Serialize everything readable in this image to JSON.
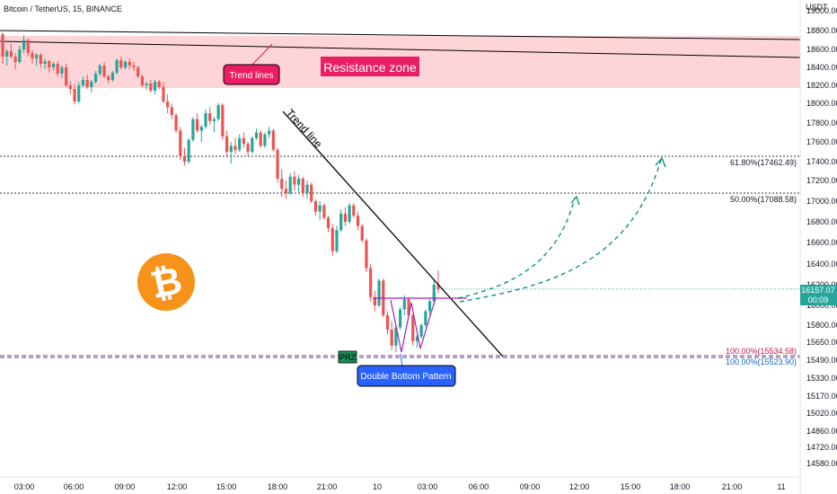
{
  "header": {
    "symbol_line": "Bitcoin / TetherUS, 15, BINANCE",
    "currency": "USDT"
  },
  "chart_data": {
    "type": "candlestick",
    "title": "Bitcoin / TetherUS, 15, BINANCE",
    "y_unit": "USDT",
    "ylim": [
      14480,
      19100
    ],
    "y_ticks": [
      14580,
      14720,
      14860,
      15020,
      15170,
      15330,
      15490,
      15650,
      15800,
      16000,
      16200,
      16400,
      16600,
      16800,
      17000,
      17200,
      17400,
      17600,
      17800,
      18000,
      18200,
      18400,
      18600,
      18800,
      19000
    ],
    "x_ticks": [
      "03:00",
      "06:00",
      "09:00",
      "12:00",
      "15:00",
      "18:00",
      "21:00",
      "10",
      "03:00",
      "06:00",
      "09:00",
      "12:00",
      "15:00",
      "18:00",
      "21:00",
      "11"
    ],
    "grid": false,
    "candles": [
      [
        18760,
        18780,
        18440,
        18520
      ],
      [
        18520,
        18600,
        18420,
        18580
      ],
      [
        18580,
        18660,
        18500,
        18520
      ],
      [
        18520,
        18560,
        18380,
        18460
      ],
      [
        18460,
        18640,
        18440,
        18600
      ],
      [
        18600,
        18750,
        18560,
        18700
      ],
      [
        18700,
        18720,
        18520,
        18560
      ],
      [
        18560,
        18600,
        18440,
        18500
      ],
      [
        18500,
        18560,
        18420,
        18540
      ],
      [
        18540,
        18560,
        18400,
        18440
      ],
      [
        18440,
        18500,
        18380,
        18470
      ],
      [
        18470,
        18480,
        18340,
        18400
      ],
      [
        18400,
        18460,
        18360,
        18440
      ],
      [
        18440,
        18470,
        18300,
        18330
      ],
      [
        18330,
        18420,
        18280,
        18400
      ],
      [
        18400,
        18440,
        18180,
        18200
      ],
      [
        18200,
        18250,
        18100,
        18160
      ],
      [
        18160,
        18220,
        17990,
        18020
      ],
      [
        18020,
        18240,
        18000,
        18200
      ],
      [
        18200,
        18300,
        18180,
        18260
      ],
      [
        18260,
        18320,
        18160,
        18180
      ],
      [
        18180,
        18260,
        18120,
        18240
      ],
      [
        18240,
        18360,
        18220,
        18330
      ],
      [
        18330,
        18440,
        18300,
        18420
      ],
      [
        18420,
        18460,
        18280,
        18300
      ],
      [
        18300,
        18320,
        18220,
        18260
      ],
      [
        18260,
        18360,
        18240,
        18340
      ],
      [
        18340,
        18500,
        18320,
        18480
      ],
      [
        18480,
        18520,
        18380,
        18400
      ],
      [
        18400,
        18480,
        18380,
        18460
      ],
      [
        18460,
        18500,
        18380,
        18420
      ],
      [
        18420,
        18460,
        18360,
        18400
      ],
      [
        18400,
        18420,
        18280,
        18300
      ],
      [
        18300,
        18320,
        18180,
        18200
      ],
      [
        18200,
        18240,
        18150,
        18220
      ],
      [
        18220,
        18260,
        18120,
        18140
      ],
      [
        18140,
        18260,
        18100,
        18240
      ],
      [
        18240,
        18260,
        18160,
        18180
      ],
      [
        18180,
        18240,
        18000,
        18020
      ],
      [
        18020,
        18100,
        17900,
        17960
      ],
      [
        17960,
        18000,
        17840,
        17880
      ],
      [
        17880,
        17900,
        17700,
        17720
      ],
      [
        17720,
        17760,
        17420,
        17460
      ],
      [
        17460,
        17540,
        17360,
        17400
      ],
      [
        17400,
        17640,
        17380,
        17620
      ],
      [
        17620,
        17860,
        17600,
        17840
      ],
      [
        17840,
        17900,
        17700,
        17720
      ],
      [
        17720,
        17780,
        17600,
        17760
      ],
      [
        17760,
        17940,
        17740,
        17900
      ],
      [
        17900,
        17960,
        17780,
        17820
      ],
      [
        17820,
        17860,
        17700,
        17840
      ],
      [
        17840,
        18000,
        17820,
        17980
      ],
      [
        17980,
        18000,
        17620,
        17660
      ],
      [
        17660,
        17720,
        17460,
        17500
      ],
      [
        17500,
        17600,
        17380,
        17560
      ],
      [
        17560,
        17640,
        17480,
        17520
      ],
      [
        17520,
        17680,
        17500,
        17640
      ],
      [
        17640,
        17700,
        17540,
        17580
      ],
      [
        17580,
        17600,
        17460,
        17500
      ],
      [
        17500,
        17660,
        17480,
        17640
      ],
      [
        17640,
        17740,
        17620,
        17700
      ],
      [
        17700,
        17720,
        17540,
        17560
      ],
      [
        17560,
        17700,
        17540,
        17680
      ],
      [
        17680,
        17760,
        17640,
        17720
      ],
      [
        17720,
        17740,
        17500,
        17520
      ],
      [
        17520,
        17540,
        17180,
        17220
      ],
      [
        17220,
        17320,
        17040,
        17120
      ],
      [
        17120,
        17200,
        17020,
        17080
      ],
      [
        17080,
        17280,
        17060,
        17240
      ],
      [
        17240,
        17300,
        17100,
        17160
      ],
      [
        17160,
        17260,
        17080,
        17220
      ],
      [
        17220,
        17240,
        17040,
        17080
      ],
      [
        17080,
        17200,
        17020,
        17160
      ],
      [
        17160,
        17180,
        16980,
        17000
      ],
      [
        17000,
        17020,
        16860,
        16900
      ],
      [
        16900,
        17000,
        16820,
        16960
      ],
      [
        16960,
        16980,
        16820,
        16840
      ],
      [
        16840,
        16860,
        16700,
        16740
      ],
      [
        16740,
        16780,
        16480,
        16520
      ],
      [
        16520,
        16760,
        16500,
        16720
      ],
      [
        16720,
        16920,
        16700,
        16880
      ],
      [
        16880,
        16940,
        16760,
        16800
      ],
      [
        16800,
        16980,
        16780,
        16960
      ],
      [
        16960,
        16980,
        16840,
        16860
      ],
      [
        16860,
        16900,
        16720,
        16760
      ],
      [
        16760,
        16780,
        16600,
        16620
      ],
      [
        16620,
        16640,
        16320,
        16360
      ],
      [
        16360,
        16400,
        16040,
        16080
      ],
      [
        16080,
        16140,
        15940,
        16000
      ],
      [
        16000,
        16260,
        15980,
        16240
      ],
      [
        16240,
        16260,
        15880,
        15900
      ],
      [
        15900,
        15940,
        15720,
        15760
      ],
      [
        15760,
        15840,
        15580,
        15620
      ],
      [
        15620,
        15800,
        15560,
        15780
      ],
      [
        15780,
        15980,
        15760,
        15960
      ],
      [
        15960,
        16100,
        15900,
        16060
      ],
      [
        16060,
        16080,
        15880,
        15900
      ],
      [
        15900,
        15920,
        15620,
        15660
      ],
      [
        15660,
        15720,
        15600,
        15700
      ],
      [
        15700,
        15820,
        15680,
        15800
      ],
      [
        15800,
        15960,
        15780,
        15940
      ],
      [
        15940,
        16060,
        15900,
        16040
      ],
      [
        16040,
        16240,
        16000,
        16200
      ],
      [
        16200,
        16340,
        16120,
        16157
      ]
    ],
    "annotations": {
      "resistance_zone": {
        "label": "Resistance zone",
        "price_range": [
          18200,
          18790
        ]
      },
      "trend_lines_label": "Trend lines",
      "trend_line_label": "Trend line",
      "fib_levels": [
        {
          "label": "61.80%(17462.49)",
          "price": 17462.49
        },
        {
          "label": "50.00%(17088.58)",
          "price": 17088.58
        }
      ],
      "prz_label": "PRZ",
      "prz_levels": [
        {
          "label": "100.00%(15534.58)",
          "price": 15534.58,
          "color": "#c2185b"
        },
        {
          "label": "100.00%(15523.90)",
          "price": 15523.9,
          "color": "#1565c0"
        }
      ],
      "pattern_label": "Double Bottom Pattern",
      "neckline_price": 16080,
      "projected_targets": [
        17088.58,
        17462.49
      ]
    },
    "last_price": {
      "price": "16157.07",
      "countdown": "00:09"
    }
  },
  "colors": {
    "up": "#26a69a",
    "down": "#ef5350",
    "resistance_fill": "#fdd5d8",
    "callout_red": "#e91e63",
    "callout_blue": "#2962ff",
    "pattern": "#9c27b0",
    "projection": "#00897b",
    "btc_orange": "#f7931a"
  },
  "logo": {
    "name": "bitcoin-logo",
    "glyph": "₿"
  }
}
